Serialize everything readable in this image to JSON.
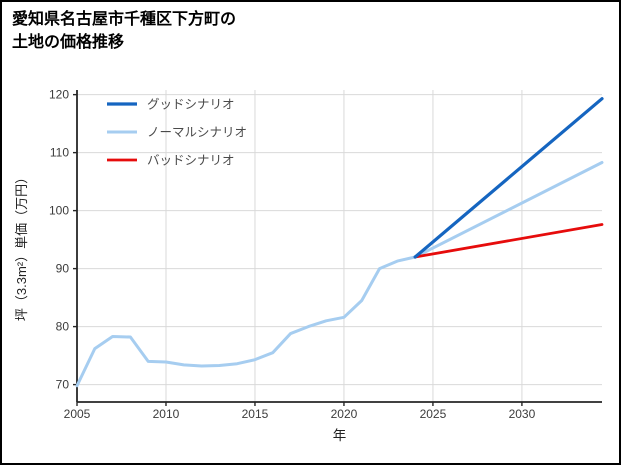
{
  "page": {
    "background": "#ffffff",
    "border_color": "#000000"
  },
  "title": {
    "line1": "愛知県名古屋市千種区下方町の",
    "line2": "土地の価格推移"
  },
  "chart_data": {
    "type": "line",
    "title": "愛知県名古屋市千種区下方町の土地の価格推移",
    "xlabel": "年",
    "ylabel": "坪（3.3m²）単価（万円）",
    "x_ticks": [
      2005,
      2010,
      2015,
      2020,
      2025,
      2030
    ],
    "y_ticks": [
      70,
      80,
      90,
      100,
      110,
      120
    ],
    "xlim": [
      2005,
      2034.5
    ],
    "ylim": [
      67,
      120.8
    ],
    "grid": true,
    "grid_color": "#d9d9d9",
    "axis_color": "#262626",
    "tick_label_color": "#3c3c3c",
    "legend_position": "upper-left",
    "legend_text_color": "#4a4a4a",
    "series": [
      {
        "id": "good",
        "name": "グッドシナリオ",
        "color": "#1565c0",
        "line_width": 3.2,
        "z": 3,
        "x": [
          2024,
          2034.5
        ],
        "values": [
          92,
          119.3
        ]
      },
      {
        "id": "normal",
        "name": "ノーマルシナリオ",
        "color": "#a6cdf0",
        "line_width": 3,
        "z": 1,
        "x": [
          2005,
          2006,
          2007,
          2008,
          2009,
          2010,
          2011,
          2012,
          2013,
          2014,
          2015,
          2016,
          2017,
          2018,
          2019,
          2020,
          2021,
          2022,
          2023,
          2024,
          2034.5
        ],
        "values": [
          69.8,
          76.2,
          78.3,
          78.2,
          74.0,
          73.9,
          73.4,
          73.2,
          73.3,
          73.6,
          74.3,
          75.5,
          78.8,
          80.0,
          81.0,
          81.6,
          84.5,
          90.0,
          91.3,
          92.0,
          108.3
        ]
      },
      {
        "id": "bad",
        "name": "バッドシナリオ",
        "color": "#e60c0c",
        "line_width": 2.8,
        "z": 2,
        "x": [
          2024,
          2034.5
        ],
        "values": [
          92,
          97.6
        ]
      }
    ]
  }
}
